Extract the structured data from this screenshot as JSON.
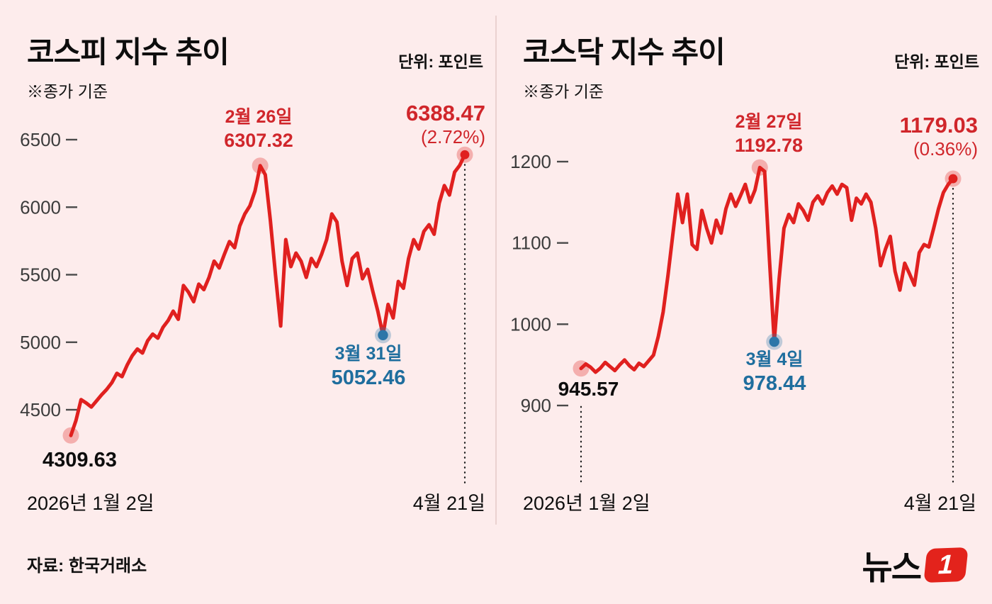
{
  "page": {
    "background": "#fdecec",
    "footer": {
      "source": "자료: 한국거래소",
      "logo_text": "뉴스",
      "logo_digit": "1"
    }
  },
  "chart_data": [
    {
      "type": "line",
      "title": "코스피 지수 추이",
      "unit_label": "단위: 포인트",
      "note": "※종가 기준",
      "x_axis": {
        "start_label": "2026년 1월 2일",
        "end_label": "4월 21일"
      },
      "yticks": [
        6500,
        6000,
        5500,
        5000,
        4500
      ],
      "ylim": [
        4200,
        6650
      ],
      "line_color": "#e0201f",
      "values": [
        4309.63,
        4420,
        4575,
        4550,
        4520,
        4565,
        4610,
        4650,
        4700,
        4770,
        4745,
        4830,
        4900,
        4950,
        4920,
        5010,
        5060,
        5030,
        5110,
        5160,
        5230,
        5170,
        5420,
        5370,
        5300,
        5430,
        5390,
        5480,
        5600,
        5550,
        5650,
        5745,
        5700,
        5860,
        5950,
        6010,
        6120,
        6307.32,
        6240,
        5900,
        5500,
        5120,
        5760,
        5560,
        5660,
        5600,
        5480,
        5620,
        5560,
        5650,
        5760,
        5950,
        5890,
        5600,
        5420,
        5620,
        5660,
        5470,
        5540,
        5380,
        5230,
        5052.46,
        5280,
        5180,
        5450,
        5400,
        5620,
        5760,
        5690,
        5820,
        5870,
        5800,
        6030,
        6160,
        6090,
        6260,
        6310,
        6388.47
      ],
      "annotations": {
        "start": {
          "label": "4309.63",
          "index": 0,
          "color": "#0d0d0d"
        },
        "peak": {
          "date": "2월 26일",
          "label": "6307.32",
          "index": 37,
          "color": "#d0262b"
        },
        "low": {
          "date": "3월 31일",
          "label": "5052.46",
          "index": 61,
          "color": "#1f6e9e"
        },
        "end": {
          "label": "6388.47",
          "pct": "(2.72%)",
          "index": 77,
          "color": "#d0262b"
        }
      }
    },
    {
      "type": "line",
      "title": "코스닥 지수 추이",
      "unit_label": "단위: 포인트",
      "note": "※종가 기준",
      "x_axis": {
        "start_label": "2026년 1월 2일",
        "end_label": "4월 21일"
      },
      "yticks": [
        1200,
        1100,
        1000,
        900
      ],
      "ylim": [
        880,
        1240
      ],
      "line_color": "#e0201f",
      "values": [
        945.57,
        951,
        947,
        941,
        946,
        953,
        948,
        943,
        950,
        956,
        949,
        944,
        952,
        948,
        955,
        962,
        985,
        1015,
        1060,
        1110,
        1160,
        1125,
        1160,
        1098,
        1092,
        1140,
        1118,
        1100,
        1128,
        1112,
        1142,
        1160,
        1145,
        1158,
        1172,
        1150,
        1165,
        1192.78,
        1188,
        1080,
        978.44,
        1055,
        1118,
        1135,
        1125,
        1148,
        1140,
        1128,
        1150,
        1158,
        1148,
        1162,
        1170,
        1160,
        1172,
        1168,
        1128,
        1155,
        1148,
        1160,
        1150,
        1118,
        1072,
        1092,
        1108,
        1065,
        1042,
        1075,
        1062,
        1048,
        1088,
        1098,
        1095,
        1118,
        1142,
        1162,
        1172,
        1179.03
      ],
      "annotations": {
        "start": {
          "label": "945.57",
          "index": 0,
          "color": "#0d0d0d"
        },
        "peak": {
          "date": "2월 27일",
          "label": "1192.78",
          "index": 37,
          "color": "#d0262b"
        },
        "low": {
          "date": "3월 4일",
          "label": "978.44",
          "index": 40,
          "color": "#1f6e9e"
        },
        "end": {
          "label": "1179.03",
          "pct": "(0.36%)",
          "index": 77,
          "color": "#d0262b"
        }
      }
    }
  ]
}
